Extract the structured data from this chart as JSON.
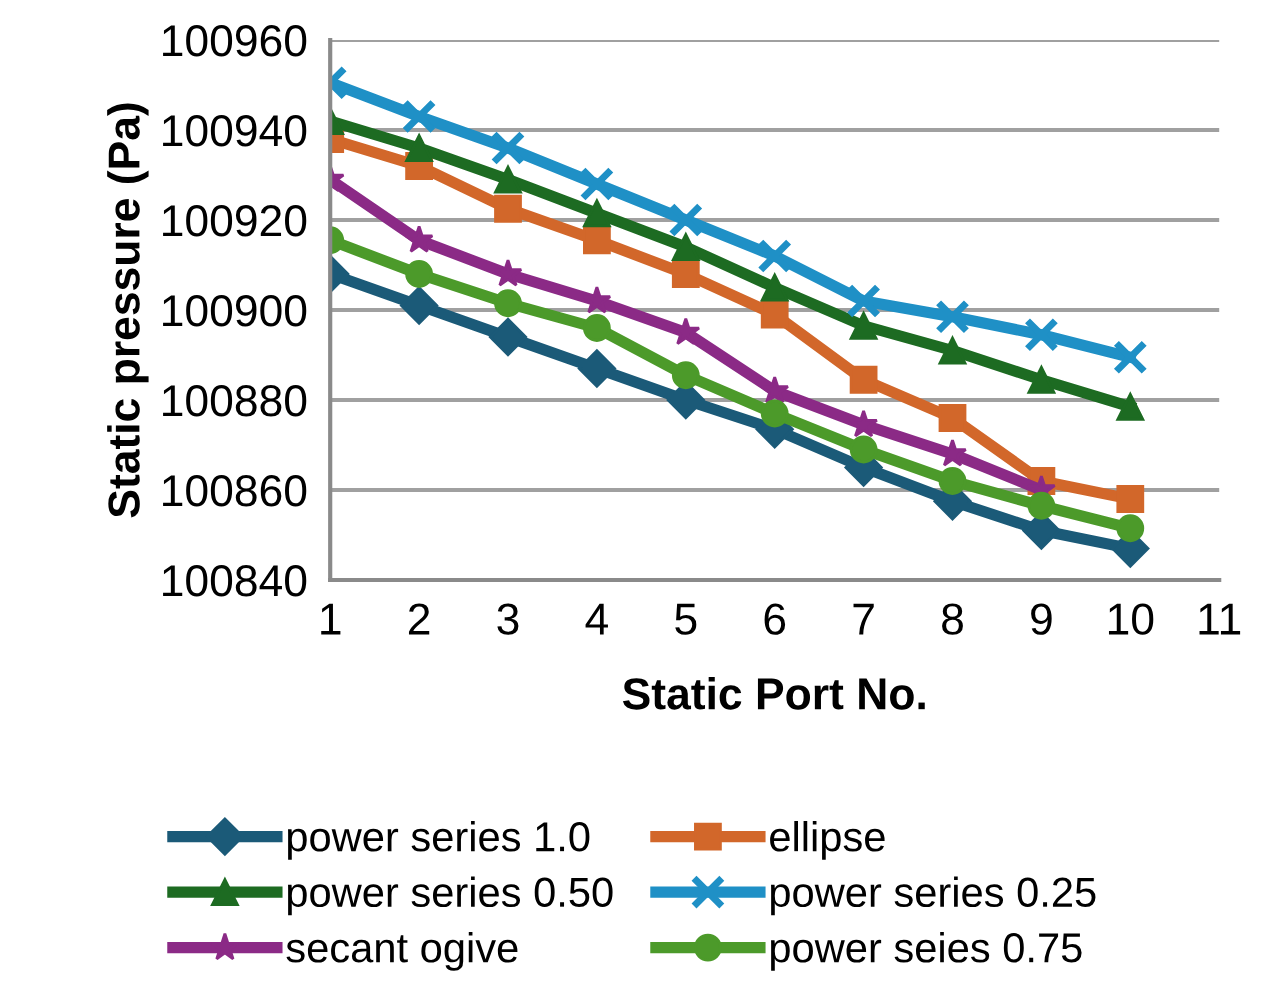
{
  "chart_data": {
    "type": "line",
    "xlabel": "Static Port No.",
    "ylabel": "Static pressure (Pa)",
    "x": [
      1,
      2,
      3,
      4,
      5,
      6,
      7,
      8,
      9,
      10
    ],
    "xlim": [
      1,
      11
    ],
    "xticks": [
      1,
      2,
      3,
      4,
      5,
      6,
      7,
      8,
      9,
      10,
      11
    ],
    "ylim": [
      100840,
      100960
    ],
    "yticks": [
      100840,
      100860,
      100880,
      100900,
      100920,
      100940,
      100960
    ],
    "grid": "y",
    "legend": "bottom",
    "line_style": "solid",
    "series": [
      {
        "name": "power series 1.0",
        "color": "#1b5a78",
        "marker": "diamond",
        "values": [
          100908,
          100901,
          100894,
          100887,
          100880,
          100873.5,
          100865,
          100857.5,
          100851,
          100847
        ]
      },
      {
        "name": "ellipse",
        "color": "#d2672a",
        "marker": "square",
        "values": [
          100938,
          100932,
          100922.5,
          100915.5,
          100908,
          100899,
          100884.5,
          100876,
          100862,
          100858
        ]
      },
      {
        "name": "power series 0.50",
        "color": "#1d6b22",
        "marker": "triangle",
        "values": [
          100942,
          100936,
          100929,
          100921.5,
          100914,
          100905,
          100896.5,
          100891,
          100884.5,
          100878.5
        ]
      },
      {
        "name": "power series 0.25",
        "color": "#1f90c6",
        "marker": "cross",
        "values": [
          100950.5,
          100943,
          100936,
          100928,
          100920,
          100912,
          100902,
          100898.5,
          100894.5,
          100889.5
        ]
      },
      {
        "name": "secant ogive",
        "color": "#8b2a86",
        "marker": "star",
        "values": [
          100929,
          100915.5,
          100908,
          100902,
          100895,
          100882,
          100874.5,
          100868,
          100860,
          null
        ]
      },
      {
        "name": "power seies 0.75",
        "color": "#4c9a2a",
        "marker": "circle",
        "values": [
          100915.5,
          100908,
          100901.5,
          100896,
          100885.5,
          100877,
          100869,
          100862,
          100856.5,
          100851.5
        ]
      }
    ]
  }
}
